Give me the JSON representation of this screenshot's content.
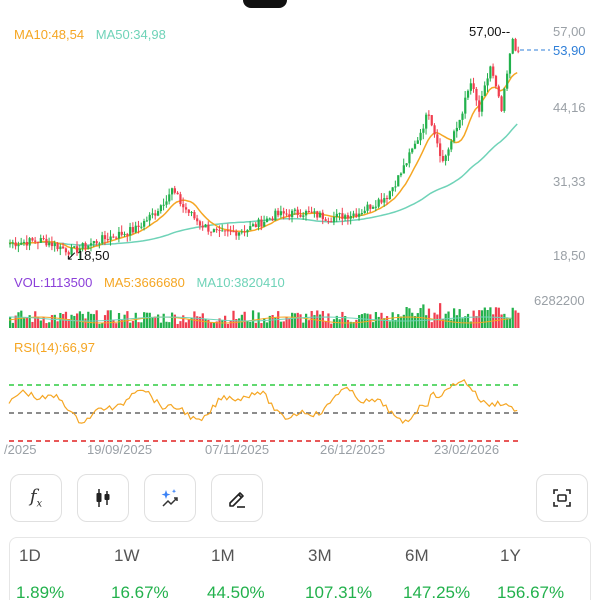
{
  "legend": {
    "ma10": "MA10:48,54",
    "ma50": "MA50:34,98",
    "ma10_color": "#f5a623",
    "ma50_color": "#6fd3b8"
  },
  "price_axis": {
    "labels": [
      "57,00",
      "53,90",
      "44,16",
      "31,33",
      "18,50"
    ],
    "current_price": "53,90",
    "high_marker": "57,00",
    "low_marker": "18,50"
  },
  "volume": {
    "vol": "VOL:1113500",
    "ma5": "MA5:3666680",
    "ma10": "MA10:3820410",
    "max": "6282200",
    "vol_color": "#8b3fd9",
    "ma5_color": "#f5a623",
    "ma10_color": "#6fd3b8"
  },
  "rsi": {
    "label": "RSI(14):66,97"
  },
  "dates": [
    "/2025",
    "19/09/2025",
    "07/11/2025",
    "26/12/2025",
    "23/02/2026"
  ],
  "toolbar": {
    "buttons": [
      {
        "name": "indicator-function-icon",
        "glyph": "𝑓x"
      },
      {
        "name": "candlestick-icon",
        "glyph": ""
      },
      {
        "name": "ai-sparkle-icon",
        "glyph": "✦"
      },
      {
        "name": "draw-pencil-icon",
        "glyph": "✎"
      },
      {
        "name": "screenshot-capture-icon",
        "glyph": "⌖"
      }
    ]
  },
  "periods": [
    {
      "label": "1D",
      "value": "1.89%"
    },
    {
      "label": "1W",
      "value": "16.67%"
    },
    {
      "label": "1M",
      "value": "44.50%"
    },
    {
      "label": "3M",
      "value": "107.31%"
    },
    {
      "label": "6M",
      "value": "147.25%"
    },
    {
      "label": "1Y",
      "value": "156.67%"
    }
  ],
  "colors": {
    "up": "#22b14c",
    "down": "#f03e4f",
    "accent_blue": "#2f7fd8",
    "overbought": "#2ecc40",
    "oversold": "#e02020",
    "mid": "#666666"
  }
}
